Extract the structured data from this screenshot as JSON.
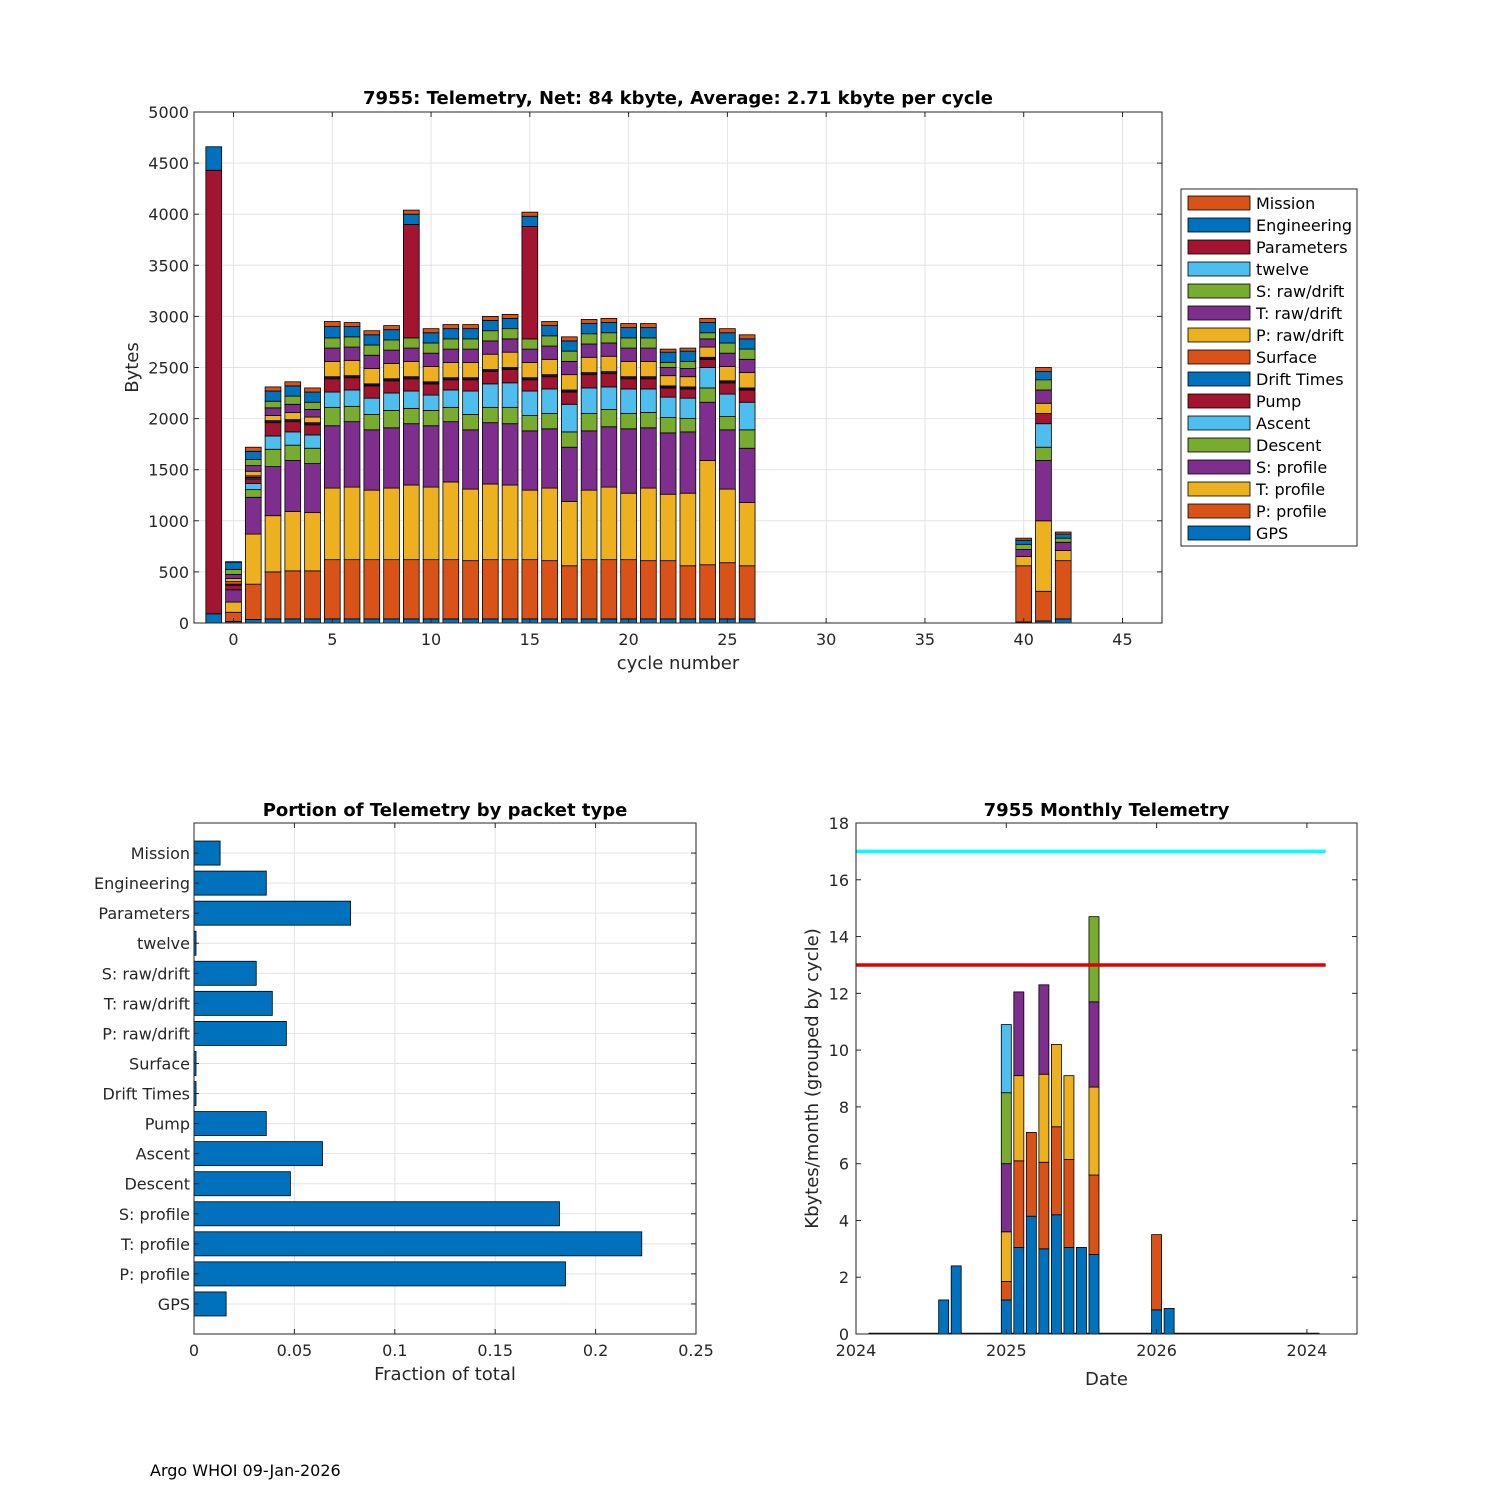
{
  "footer": "Argo WHOI 09-Jan-2026",
  "colors": {
    "Mission": "#D95319",
    "Engineering": "#0072BD",
    "Parameters": "#A2142F",
    "twelve": "#4DBEEE",
    "S: raw/drift": "#77AC30",
    "T: raw/drift": "#7E2F8E",
    "P: raw/drift": "#EDB120",
    "Surface": "#D95319",
    "Drift Times": "#0072BD",
    "Pump": "#A2142F",
    "Ascent": "#4DBEEE",
    "Descent": "#77AC30",
    "S: profile": "#7E2F8E",
    "T: profile": "#EDB120",
    "P: profile": "#D95319",
    "GPS": "#0072BD",
    "bar_blue": "#0072BD",
    "line_red": "#E00000",
    "line_cyan": "#00FFFF"
  },
  "chart_data": [
    {
      "type": "bar",
      "stacked": true,
      "title": "7955: Telemetry, Net:     84 kbyte,  Average: 2.71 kbyte per cycle",
      "xlabel": "cycle number",
      "ylabel": "Bytes",
      "xlim": [
        -2,
        47
      ],
      "ylim": [
        0,
        5000
      ],
      "xticks": [
        0,
        5,
        10,
        15,
        20,
        25,
        30,
        35,
        40,
        45
      ],
      "yticks": [
        0,
        500,
        1000,
        1500,
        2000,
        2500,
        3000,
        3500,
        4000,
        4500,
        5000
      ],
      "grid": true,
      "legend_location": "east-outside",
      "legend": [
        "Mission",
        "Engineering",
        "Parameters",
        "twelve",
        "S: raw/drift",
        "T: raw/drift",
        "P: raw/drift",
        "Surface",
        "Drift Times",
        "Pump",
        "Ascent",
        "Descent",
        "S: profile",
        "T: profile",
        "P: profile",
        "GPS"
      ],
      "stack_order": [
        "GPS",
        "P: profile",
        "T: profile",
        "S: profile",
        "Descent",
        "Ascent",
        "Pump",
        "Drift Times",
        "Surface",
        "P: raw/drift",
        "T: raw/drift",
        "S: raw/drift",
        "twelve",
        "Parameters",
        "Engineering",
        "Mission"
      ],
      "bars": [
        {
          "cycle": -1,
          "GPS": 90,
          "Parameters": 4340,
          "Engineering": 230
        },
        {
          "cycle": 0,
          "GPS": 15,
          "P: profile": 90,
          "T: profile": 100,
          "S: profile": 120,
          "Descent": 0,
          "Ascent": 0,
          "Pump": 45,
          "Drift Times": 10,
          "Surface": 25,
          "P: raw/drift": 30,
          "T: raw/drift": 40,
          "S: raw/drift": 50,
          "twelve": 0,
          "Engineering": 70,
          "Mission": 5
        },
        {
          "cycle": 1,
          "GPS": 35,
          "P: profile": 345,
          "T: profile": 490,
          "S: profile": 360,
          "Descent": 75,
          "Ascent": 60,
          "Pump": 45,
          "Drift Times": 15,
          "Surface": 15,
          "P: raw/drift": 45,
          "T: raw/drift": 55,
          "S: raw/drift": 60,
          "twelve": 0,
          "Engineering": 80,
          "Mission": 40
        },
        {
          "cycle": 2,
          "GPS": 40,
          "P: profile": 460,
          "T: profile": 550,
          "S: profile": 480,
          "Descent": 170,
          "Ascent": 130,
          "Pump": 130,
          "Drift Times": 10,
          "Surface": 10,
          "P: raw/drift": 50,
          "T: raw/drift": 75,
          "S: raw/drift": 65,
          "twelve": 0,
          "Engineering": 100,
          "Mission": 40
        },
        {
          "cycle": 3,
          "GPS": 40,
          "P: profile": 470,
          "T: profile": 580,
          "S: profile": 500,
          "Descent": 150,
          "Ascent": 130,
          "Pump": 100,
          "Drift Times": 10,
          "Surface": 10,
          "P: raw/drift": 70,
          "T: raw/drift": 80,
          "S: raw/drift": 80,
          "twelve": 0,
          "Engineering": 100,
          "Mission": 40
        },
        {
          "cycle": 4,
          "GPS": 40,
          "P: profile": 470,
          "T: profile": 570,
          "S: profile": 480,
          "Descent": 150,
          "Ascent": 130,
          "Pump": 100,
          "Drift Times": 10,
          "Surface": 10,
          "P: raw/drift": 55,
          "T: raw/drift": 75,
          "S: raw/drift": 70,
          "twelve": 0,
          "Engineering": 100,
          "Mission": 40
        },
        {
          "cycle": 5,
          "GPS": 40,
          "P: profile": 580,
          "T: profile": 700,
          "S: profile": 610,
          "Descent": 180,
          "Ascent": 150,
          "Pump": 130,
          "Drift Times": 10,
          "Surface": 10,
          "P: raw/drift": 150,
          "T: raw/drift": 130,
          "S: raw/drift": 100,
          "twelve": 0,
          "Engineering": 110,
          "Mission": 50
        },
        {
          "cycle": 6,
          "GPS": 40,
          "P: profile": 580,
          "T: profile": 710,
          "S: profile": 640,
          "Descent": 150,
          "Ascent": 160,
          "Pump": 120,
          "Drift Times": 10,
          "Surface": 10,
          "P: raw/drift": 150,
          "T: raw/drift": 130,
          "S: raw/drift": 100,
          "twelve": 0,
          "Engineering": 100,
          "Mission": 40
        },
        {
          "cycle": 7,
          "GPS": 40,
          "P: profile": 580,
          "T: profile": 680,
          "S: profile": 590,
          "Descent": 150,
          "Ascent": 160,
          "Pump": 120,
          "Drift Times": 10,
          "Surface": 10,
          "P: raw/drift": 150,
          "T: raw/drift": 130,
          "S: raw/drift": 100,
          "twelve": 0,
          "Engineering": 100,
          "Mission": 40
        },
        {
          "cycle": 8,
          "GPS": 40,
          "P: profile": 580,
          "T: profile": 700,
          "S: profile": 590,
          "Descent": 170,
          "Ascent": 170,
          "Pump": 120,
          "Drift Times": 10,
          "Surface": 10,
          "P: raw/drift": 150,
          "T: raw/drift": 130,
          "S: raw/drift": 100,
          "twelve": 0,
          "Engineering": 100,
          "Mission": 40
        },
        {
          "cycle": 9,
          "GPS": 40,
          "P: profile": 580,
          "T: profile": 730,
          "S: profile": 600,
          "Descent": 150,
          "Ascent": 170,
          "Pump": 120,
          "Drift Times": 10,
          "Surface": 10,
          "P: raw/drift": 150,
          "T: raw/drift": 130,
          "S: raw/drift": 100,
          "twelve": 0,
          "Parameters": 1110,
          "Engineering": 100,
          "Mission": 40
        },
        {
          "cycle": 10,
          "GPS": 40,
          "P: profile": 580,
          "T: profile": 710,
          "S: profile": 600,
          "Descent": 150,
          "Ascent": 150,
          "Pump": 110,
          "Drift Times": 10,
          "Surface": 10,
          "P: raw/drift": 150,
          "T: raw/drift": 130,
          "S: raw/drift": 100,
          "twelve": 0,
          "Engineering": 100,
          "Mission": 40
        },
        {
          "cycle": 11,
          "GPS": 40,
          "P: profile": 580,
          "T: profile": 760,
          "S: profile": 590,
          "Descent": 140,
          "Ascent": 170,
          "Pump": 100,
          "Drift Times": 10,
          "Surface": 10,
          "P: raw/drift": 150,
          "T: raw/drift": 130,
          "S: raw/drift": 100,
          "twelve": 0,
          "Engineering": 100,
          "Mission": 40
        },
        {
          "cycle": 12,
          "GPS": 40,
          "P: profile": 570,
          "T: profile": 700,
          "S: profile": 580,
          "Descent": 150,
          "Ascent": 230,
          "Pump": 110,
          "Drift Times": 10,
          "Surface": 10,
          "P: raw/drift": 150,
          "T: raw/drift": 130,
          "S: raw/drift": 100,
          "twelve": 0,
          "Engineering": 100,
          "Mission": 40
        },
        {
          "cycle": 13,
          "GPS": 40,
          "P: profile": 580,
          "T: profile": 740,
          "S: profile": 600,
          "Descent": 150,
          "Ascent": 230,
          "Pump": 120,
          "Drift Times": 10,
          "Surface": 10,
          "P: raw/drift": 150,
          "T: raw/drift": 130,
          "S: raw/drift": 100,
          "twelve": 0,
          "Engineering": 100,
          "Mission": 40
        },
        {
          "cycle": 14,
          "GPS": 40,
          "P: profile": 580,
          "T: profile": 730,
          "S: profile": 600,
          "Descent": 160,
          "Ascent": 240,
          "Pump": 130,
          "Drift Times": 10,
          "Surface": 10,
          "P: raw/drift": 150,
          "T: raw/drift": 130,
          "S: raw/drift": 100,
          "twelve": 0,
          "Engineering": 100,
          "Mission": 40
        },
        {
          "cycle": 15,
          "GPS": 40,
          "P: profile": 580,
          "T: profile": 680,
          "S: profile": 580,
          "Descent": 150,
          "Ascent": 240,
          "Pump": 110,
          "Drift Times": 10,
          "Surface": 10,
          "P: raw/drift": 150,
          "T: raw/drift": 130,
          "S: raw/drift": 100,
          "twelve": 0,
          "Parameters": 1100,
          "Engineering": 100,
          "Mission": 40
        },
        {
          "cycle": 16,
          "GPS": 40,
          "P: profile": 570,
          "T: profile": 710,
          "S: profile": 580,
          "Descent": 150,
          "Ascent": 240,
          "Pump": 120,
          "Drift Times": 10,
          "Surface": 10,
          "P: raw/drift": 150,
          "T: raw/drift": 130,
          "S: raw/drift": 100,
          "twelve": 0,
          "Engineering": 100,
          "Mission": 40
        },
        {
          "cycle": 17,
          "GPS": 40,
          "P: profile": 520,
          "T: profile": 630,
          "S: profile": 530,
          "Descent": 150,
          "Ascent": 270,
          "Pump": 120,
          "Drift Times": 10,
          "Surface": 10,
          "P: raw/drift": 150,
          "T: raw/drift": 130,
          "S: raw/drift": 100,
          "twelve": 0,
          "Engineering": 100,
          "Mission": 40
        },
        {
          "cycle": 18,
          "GPS": 40,
          "P: profile": 580,
          "T: profile": 680,
          "S: profile": 580,
          "Descent": 170,
          "Ascent": 250,
          "Pump": 130,
          "Drift Times": 10,
          "Surface": 10,
          "P: raw/drift": 150,
          "T: raw/drift": 130,
          "S: raw/drift": 100,
          "twelve": 0,
          "Engineering": 100,
          "Mission": 40
        },
        {
          "cycle": 19,
          "GPS": 40,
          "P: profile": 580,
          "T: profile": 710,
          "S: profile": 590,
          "Descent": 170,
          "Ascent": 220,
          "Pump": 130,
          "Drift Times": 10,
          "Surface": 10,
          "P: raw/drift": 150,
          "T: raw/drift": 130,
          "S: raw/drift": 100,
          "twelve": 0,
          "Engineering": 100,
          "Mission": 40
        },
        {
          "cycle": 20,
          "GPS": 40,
          "P: profile": 580,
          "T: profile": 650,
          "S: profile": 630,
          "Descent": 150,
          "Ascent": 240,
          "Pump": 100,
          "Drift Times": 10,
          "Surface": 10,
          "P: raw/drift": 150,
          "T: raw/drift": 130,
          "S: raw/drift": 100,
          "twelve": 0,
          "Engineering": 100,
          "Mission": 40
        },
        {
          "cycle": 21,
          "GPS": 40,
          "P: profile": 570,
          "T: profile": 710,
          "S: profile": 590,
          "Descent": 150,
          "Ascent": 230,
          "Pump": 100,
          "Drift Times": 10,
          "Surface": 10,
          "P: raw/drift": 150,
          "T: raw/drift": 130,
          "S: raw/drift": 100,
          "twelve": 0,
          "Engineering": 100,
          "Mission": 40
        },
        {
          "cycle": 22,
          "GPS": 40,
          "P: profile": 570,
          "T: profile": 650,
          "S: profile": 600,
          "Descent": 150,
          "Ascent": 200,
          "Pump": 90,
          "Drift Times": 10,
          "Surface": 10,
          "P: raw/drift": 100,
          "T: raw/drift": 80,
          "S: raw/drift": 50,
          "twelve": 0,
          "Engineering": 100,
          "Mission": 30
        },
        {
          "cycle": 23,
          "GPS": 40,
          "P: profile": 520,
          "T: profile": 710,
          "S: profile": 600,
          "Descent": 130,
          "Ascent": 200,
          "Pump": 90,
          "Drift Times": 10,
          "Surface": 10,
          "P: raw/drift": 100,
          "T: raw/drift": 80,
          "S: raw/drift": 70,
          "twelve": 0,
          "Engineering": 100,
          "Mission": 30
        },
        {
          "cycle": 24,
          "GPS": 40,
          "P: profile": 530,
          "T: profile": 1020,
          "S: profile": 570,
          "Descent": 140,
          "Ascent": 200,
          "Pump": 80,
          "Drift Times": 10,
          "Surface": 10,
          "P: raw/drift": 100,
          "T: raw/drift": 80,
          "S: raw/drift": 60,
          "twelve": 0,
          "Engineering": 100,
          "Mission": 40
        },
        {
          "cycle": 25,
          "GPS": 40,
          "P: profile": 550,
          "T: profile": 720,
          "S: profile": 580,
          "Descent": 130,
          "Ascent": 220,
          "Pump": 110,
          "Drift Times": 10,
          "Surface": 10,
          "P: raw/drift": 140,
          "T: raw/drift": 130,
          "S: raw/drift": 100,
          "twelve": 0,
          "Engineering": 100,
          "Mission": 40
        },
        {
          "cycle": 26,
          "GPS": 40,
          "P: profile": 520,
          "T: profile": 620,
          "S: profile": 530,
          "Descent": 180,
          "Ascent": 270,
          "Pump": 120,
          "Drift Times": 10,
          "Surface": 10,
          "P: raw/drift": 150,
          "T: raw/drift": 130,
          "S: raw/drift": 100,
          "twelve": 0,
          "Engineering": 100,
          "Mission": 40
        },
        {
          "cycle": 40,
          "GPS": 10,
          "P: profile": 550,
          "T: profile": 90,
          "S: profile": 70,
          "Descent": 50,
          "Engineering": 40,
          "Mission": 20
        },
        {
          "cycle": 41,
          "GPS": 20,
          "P: profile": 290,
          "T: profile": 690,
          "S: profile": 590,
          "Descent": 130,
          "Ascent": 230,
          "Pump": 100,
          "P: raw/drift": 100,
          "T: raw/drift": 130,
          "S: raw/drift": 100,
          "Engineering": 80,
          "Mission": 40
        },
        {
          "cycle": 42,
          "GPS": 40,
          "P: profile": 570,
          "T: profile": 100,
          "S: profile": 80,
          "Descent": 40,
          "Engineering": 40,
          "Mission": 20
        }
      ]
    },
    {
      "type": "bar",
      "orientation": "horizontal",
      "title": "Portion of Telemetry by packet type",
      "xlabel": "Fraction of total",
      "xlim": [
        0,
        0.25
      ],
      "xticks": [
        0,
        0.05,
        0.1,
        0.15,
        0.2,
        0.25
      ],
      "xtick_labels": [
        "0",
        "0.05",
        "0.1",
        "0.15",
        "0.2",
        "0.25"
      ],
      "grid": true,
      "categories": [
        "Mission",
        "Engineering",
        "Parameters",
        "twelve",
        "S: raw/drift",
        "T: raw/drift",
        "P: raw/drift",
        "Surface",
        "Drift Times",
        "Pump",
        "Ascent",
        "Descent",
        "S: profile",
        "T: profile",
        "P: profile",
        "GPS"
      ],
      "values": [
        0.013,
        0.036,
        0.078,
        0.001,
        0.031,
        0.039,
        0.046,
        0.001,
        0.001,
        0.036,
        0.064,
        0.048,
        0.182,
        0.223,
        0.185,
        0.016
      ]
    },
    {
      "type": "bar",
      "stacked": true,
      "title": "7955 Monthly Telemetry",
      "xlabel": "Date",
      "ylabel": "Kbytes/month (grouped by cycle)",
      "ylim": [
        0,
        18
      ],
      "yticks": [
        0,
        2,
        4,
        6,
        8,
        10,
        12,
        14,
        16,
        18
      ],
      "xlim": [
        0,
        40
      ],
      "xticks": [
        0,
        12,
        24,
        36
      ],
      "xtick_labels": [
        "2024",
        "2025",
        "2026",
        "2024"
      ],
      "grid": false,
      "baseline_months": [
        1,
        37
      ],
      "segment_colors": [
        "#0072BD",
        "#D95319",
        "#EDB120",
        "#7E2F8E",
        "#77AC30",
        "#4DBEEE"
      ],
      "bars": [
        {
          "month": 7,
          "segments": [
            1.2
          ]
        },
        {
          "month": 8,
          "segments": [
            2.4
          ]
        },
        {
          "month": 12,
          "segments": [
            1.2,
            0.65,
            1.75,
            2.4,
            2.5,
            2.4
          ]
        },
        {
          "month": 13,
          "segments": [
            3.05,
            3.05,
            3.0,
            2.95
          ]
        },
        {
          "month": 14,
          "segments": [
            4.15,
            2.95
          ]
        },
        {
          "month": 15,
          "segments": [
            3.0,
            3.05,
            3.1,
            3.15
          ]
        },
        {
          "month": 16,
          "segments": [
            4.2,
            3.1,
            2.9
          ]
        },
        {
          "month": 17,
          "segments": [
            3.05,
            3.1,
            2.95
          ]
        },
        {
          "month": 18,
          "segments": [
            3.05
          ]
        },
        {
          "month": 19,
          "segments": [
            2.8,
            2.8,
            3.1,
            3.0,
            3.0
          ]
        },
        {
          "month": 24,
          "segments": [
            0.85,
            2.65
          ]
        },
        {
          "month": 25,
          "segments": [
            0.9
          ]
        }
      ],
      "lines": [
        {
          "name": "red-limit-line",
          "y": 13,
          "x": [
            0,
            37.5
          ],
          "color": "#E00000"
        },
        {
          "name": "cyan-limit-line",
          "y": 17,
          "x": [
            0,
            37.5
          ],
          "color": "#00FFFF"
        }
      ]
    }
  ]
}
